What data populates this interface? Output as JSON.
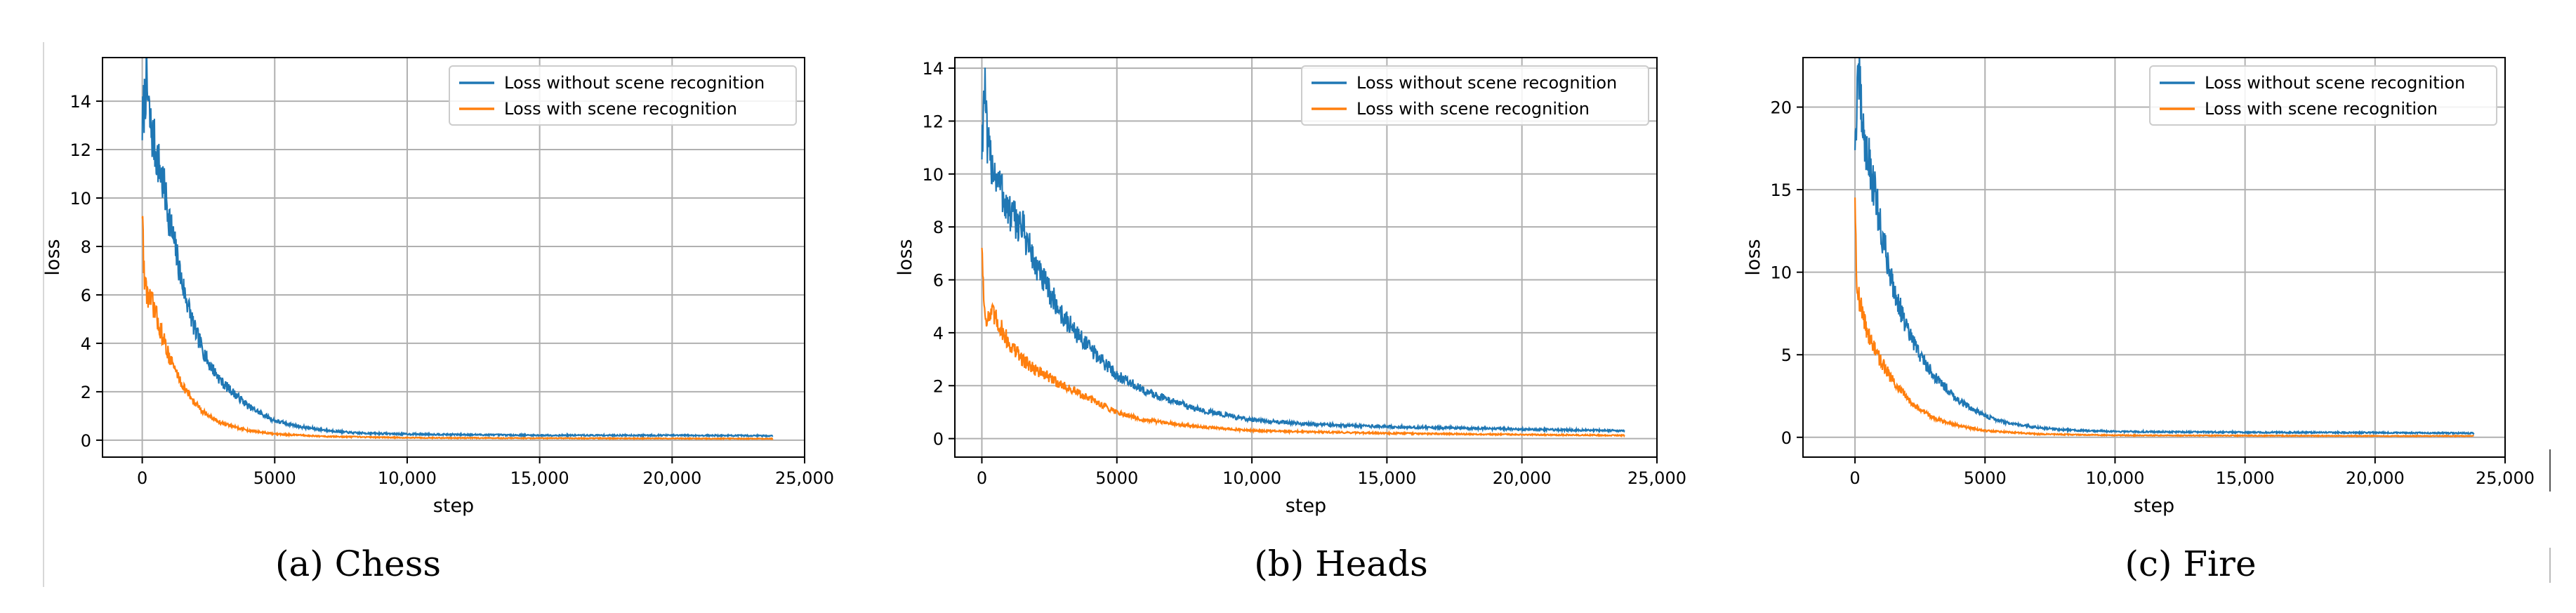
{
  "colors": {
    "without": "#1f77b4",
    "with": "#ff7f0e",
    "grid": "#b0b0b0"
  },
  "chart_data": [
    {
      "type": "line",
      "caption": "(a) Chess",
      "xlabel": "step",
      "ylabel": "loss",
      "xlim": [
        -1500,
        25000
      ],
      "ylim": [
        -0.7,
        15.8
      ],
      "xticks": [
        0,
        5000,
        10000,
        15000,
        20000,
        25000
      ],
      "xtick_labels": [
        "0",
        "5000",
        "10,000",
        "15,000",
        "20,000",
        "25,000"
      ],
      "yticks": [
        0,
        2,
        4,
        6,
        8,
        10,
        12,
        14
      ],
      "ytick_labels": [
        "0",
        "2",
        "4",
        "6",
        "8",
        "10",
        "12",
        "14"
      ],
      "grid": true,
      "legend": "top-right",
      "series": [
        {
          "name": "Loss without scene recognition",
          "color": "#1f77b4",
          "x": [
            0,
            150,
            300,
            500,
            800,
            1000,
            1500,
            2000,
            2500,
            3000,
            4000,
            5000,
            6000,
            7000,
            8000,
            10000,
            15000,
            20000,
            23800
          ],
          "y": [
            13.0,
            14.8,
            13.0,
            12.0,
            10.5,
            9.3,
            6.5,
            4.5,
            3.2,
            2.4,
            1.4,
            0.8,
            0.55,
            0.4,
            0.3,
            0.25,
            0.2,
            0.2,
            0.18
          ]
        },
        {
          "name": "Loss with scene recognition",
          "color": "#ff7f0e",
          "x": [
            0,
            50,
            100,
            200,
            400,
            700,
            1000,
            1500,
            2000,
            2500,
            3000,
            4000,
            5000,
            7000,
            10000,
            15000,
            20000,
            23800
          ],
          "y": [
            9.6,
            7.5,
            6.5,
            6.0,
            5.6,
            4.5,
            3.5,
            2.3,
            1.5,
            1.0,
            0.7,
            0.4,
            0.25,
            0.15,
            0.1,
            0.08,
            0.07,
            0.06
          ]
        }
      ]
    },
    {
      "type": "line",
      "caption": "(b) Heads",
      "xlabel": "step",
      "ylabel": "loss",
      "xlim": [
        -1000,
        25000
      ],
      "ylim": [
        -0.7,
        14.4
      ],
      "xticks": [
        0,
        5000,
        10000,
        15000,
        20000,
        25000
      ],
      "xtick_labels": [
        "0",
        "5000",
        "10,000",
        "15,000",
        "20,000",
        "25,000"
      ],
      "yticks": [
        0,
        2,
        4,
        6,
        8,
        10,
        12,
        14
      ],
      "ytick_labels": [
        "0",
        "2",
        "4",
        "6",
        "8",
        "10",
        "12",
        "14"
      ],
      "grid": true,
      "legend": "top-right",
      "series": [
        {
          "name": "Loss without scene recognition",
          "color": "#1f77b4",
          "x": [
            0,
            100,
            200,
            400,
            700,
            1000,
            1500,
            2000,
            3000,
            4000,
            5000,
            6000,
            8000,
            10000,
            12000,
            15000,
            20000,
            23800
          ],
          "y": [
            11.0,
            13.5,
            11.0,
            10.3,
            9.5,
            8.5,
            8.0,
            6.5,
            4.6,
            3.4,
            2.4,
            1.8,
            1.1,
            0.7,
            0.55,
            0.45,
            0.35,
            0.3
          ]
        },
        {
          "name": "Loss with scene recognition",
          "color": "#ff7f0e",
          "x": [
            0,
            80,
            200,
            400,
            700,
            1000,
            1500,
            2000,
            3000,
            4000,
            5000,
            6000,
            8000,
            10000,
            15000,
            20000,
            23800
          ],
          "y": [
            7.5,
            5.0,
            4.5,
            4.7,
            4.2,
            3.6,
            3.0,
            2.6,
            2.0,
            1.5,
            1.0,
            0.7,
            0.45,
            0.3,
            0.2,
            0.15,
            0.12
          ]
        }
      ]
    },
    {
      "type": "line",
      "caption": "(c) Fire",
      "xlabel": "step",
      "ylabel": "loss",
      "xlim": [
        -2000,
        25000
      ],
      "ylim": [
        -1.2,
        23.0
      ],
      "xticks": [
        0,
        5000,
        10000,
        15000,
        20000,
        25000
      ],
      "xtick_labels": [
        "0",
        "5000",
        "10,000",
        "15,000",
        "20,000",
        "25,000"
      ],
      "yticks": [
        0,
        5,
        10,
        15,
        20
      ],
      "ytick_labels": [
        "0",
        "5",
        "10",
        "15",
        "20"
      ],
      "grid": true,
      "legend": "top-right",
      "series": [
        {
          "name": "Loss without scene recognition",
          "color": "#1f77b4",
          "x": [
            0,
            150,
            300,
            500,
            800,
            1000,
            1500,
            2000,
            2500,
            3000,
            4000,
            5000,
            6000,
            7000,
            8000,
            10000,
            15000,
            20000,
            23800
          ],
          "y": [
            18.0,
            22.0,
            18.5,
            17.0,
            14.5,
            12.5,
            9.0,
            6.5,
            5.0,
            3.8,
            2.2,
            1.3,
            0.8,
            0.6,
            0.45,
            0.35,
            0.3,
            0.28,
            0.25
          ]
        },
        {
          "name": "Loss with scene recognition",
          "color": "#ff7f0e",
          "x": [
            0,
            50,
            100,
            200,
            400,
            700,
            1000,
            1500,
            2000,
            2500,
            3000,
            4000,
            5000,
            7000,
            10000,
            15000,
            20000,
            23800
          ],
          "y": [
            15.0,
            10.5,
            9.0,
            8.0,
            6.8,
            5.5,
            4.6,
            3.3,
            2.4,
            1.7,
            1.2,
            0.7,
            0.4,
            0.2,
            0.12,
            0.1,
            0.08,
            0.08
          ]
        }
      ]
    }
  ]
}
